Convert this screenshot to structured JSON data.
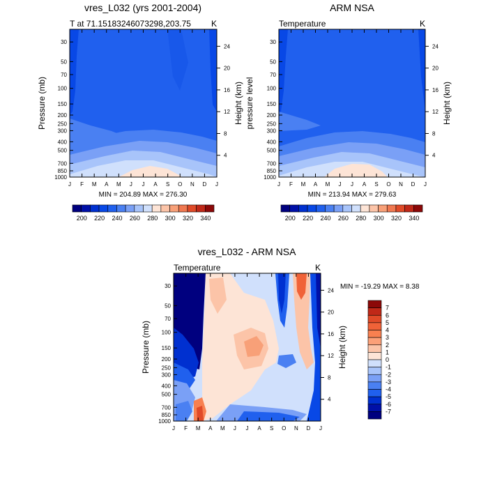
{
  "chart_data": [
    {
      "type": "heatmap",
      "title": "vres_L032 (yrs 2001-2004)",
      "subtitle_left": "T at 71.15183246073298,203.75",
      "subtitle_right": "K",
      "ylabel": "Pressure (mb)",
      "ylabel_right": "Height (km)",
      "x": [
        "J",
        "F",
        "M",
        "A",
        "M",
        "J",
        "J",
        "A",
        "S",
        "O",
        "N",
        "D",
        "J"
      ],
      "y_pressure": [
        "30",
        "50",
        "70",
        "100",
        "150",
        "200",
        "250",
        "300",
        "400",
        "500",
        "700",
        "850",
        "1000"
      ],
      "y_height": [
        "24",
        "20",
        "16",
        "12",
        "8",
        "4"
      ],
      "minmax": "MIN = 204.89  MAX = 276.30",
      "colorbar": {
        "colors": [
          "#00007f",
          "#0010a8",
          "#0030d0",
          "#0848e6",
          "#2060ee",
          "#4a80f2",
          "#7aa0f6",
          "#a8c4fa",
          "#d0e0fc",
          "#fde4d6",
          "#fcc4a8",
          "#f8a078",
          "#f07850",
          "#e04a28",
          "#c02818",
          "#8c0808"
        ],
        "labels": [
          "200",
          "220",
          "240",
          "260",
          "280",
          "300",
          "320",
          "340"
        ]
      },
      "zrange": [
        204.89,
        276.3
      ]
    },
    {
      "type": "heatmap",
      "title": "ARM NSA",
      "subtitle_left": "Temperature",
      "subtitle_right": "K",
      "ylabel": "pressure level",
      "ylabel_right": "Height (km)",
      "x": [
        "J",
        "F",
        "M",
        "A",
        "M",
        "J",
        "J",
        "A",
        "S",
        "O",
        "N",
        "D",
        "J"
      ],
      "y_pressure": [
        "30",
        "50",
        "70",
        "100",
        "150",
        "200",
        "250",
        "300",
        "400",
        "500",
        "700",
        "850",
        "1000"
      ],
      "y_height": [
        "24",
        "20",
        "16",
        "12",
        "8",
        "4"
      ],
      "minmax": "MIN = 213.94  MAX = 279.63",
      "colorbar": {
        "colors": [
          "#00007f",
          "#0010a8",
          "#0030d0",
          "#0848e6",
          "#2060ee",
          "#4a80f2",
          "#7aa0f6",
          "#a8c4fa",
          "#d0e0fc",
          "#fde4d6",
          "#fcc4a8",
          "#f8a078",
          "#f07850",
          "#e04a28",
          "#c02818",
          "#8c0808"
        ],
        "labels": [
          "200",
          "220",
          "240",
          "260",
          "280",
          "300",
          "320",
          "340"
        ]
      },
      "zrange": [
        213.94,
        279.63
      ]
    },
    {
      "type": "heatmap",
      "title": "vres_L032 - ARM NSA",
      "subtitle_left": "Temperature",
      "subtitle_right": "K",
      "ylabel": "Pressure (mb)",
      "ylabel_right": "Height (km)",
      "x": [
        "J",
        "F",
        "M",
        "A",
        "M",
        "J",
        "J",
        "A",
        "S",
        "O",
        "N",
        "D",
        "J"
      ],
      "y_pressure": [
        "30",
        "50",
        "70",
        "100",
        "150",
        "200",
        "250",
        "300",
        "400",
        "500",
        "700",
        "850",
        "1000"
      ],
      "y_height": [
        "24",
        "20",
        "16",
        "12",
        "8",
        "4"
      ],
      "minmax": "MIN = -19.29  MAX =   8.38",
      "colorbar": {
        "colors": [
          "#8c0808",
          "#c02818",
          "#e04a28",
          "#f06238",
          "#f88050",
          "#fca078",
          "#fcc4a8",
          "#fde4d6",
          "#d0e0fc",
          "#a8c4fa",
          "#7aa0f6",
          "#4a80f2",
          "#2060ee",
          "#0030d0",
          "#0010a8",
          "#00007f"
        ],
        "labels": [
          "7",
          "6",
          "5",
          "4",
          "3",
          "2",
          "1",
          "0",
          "-1",
          "-2",
          "-3",
          "-4",
          "-5",
          "-6",
          "-7"
        ]
      },
      "zrange": [
        -19.29,
        8.38
      ]
    }
  ]
}
